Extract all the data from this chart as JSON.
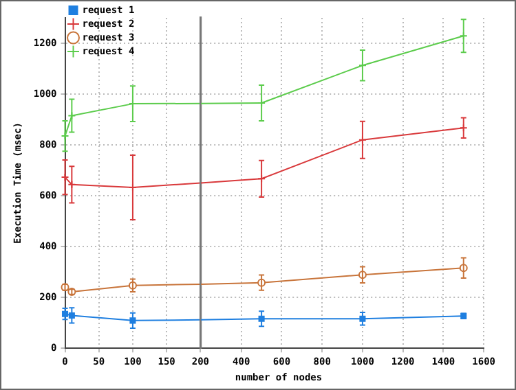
{
  "chart_data": [
    {
      "type": "line",
      "ylabel": "Execution Time (msec)",
      "x": [
        0,
        10,
        100
      ],
      "series": [
        {
          "name": "request 1",
          "color": "#1f7fe0",
          "marker": "square",
          "values": [
            135,
            129,
            109
          ],
          "errors": [
            22,
            30,
            30
          ]
        },
        {
          "name": "request 2",
          "color": "#d9393b",
          "marker": "cross",
          "values": [
            673,
            644,
            633
          ],
          "errors": [
            68,
            72,
            127
          ]
        },
        {
          "name": "request 3",
          "color": "#c8743a",
          "marker": "circle",
          "values": [
            240,
            222,
            247
          ],
          "errors": [
            12,
            10,
            25
          ]
        },
        {
          "name": "request 4",
          "color": "#5ccc4c",
          "marker": "cross",
          "values": [
            835,
            915,
            962
          ],
          "errors": [
            60,
            65,
            70
          ]
        },
        {
          "color": "#1f7fe0",
          "marker": "none",
          "x": [
            100,
            200
          ],
          "values": [
            109,
            112
          ]
        },
        {
          "color": "#d9393b",
          "marker": "none",
          "x": [
            100,
            200
          ],
          "values": [
            633,
            650
          ]
        },
        {
          "color": "#c8743a",
          "marker": "none",
          "x": [
            100,
            200
          ],
          "values": [
            247,
            252
          ]
        },
        {
          "color": "#5ccc4c",
          "marker": "none",
          "x": [
            100,
            200
          ],
          "values": [
            962,
            963
          ]
        }
      ],
      "xlim": [
        0,
        200
      ],
      "xticks": [
        0,
        50,
        100,
        150,
        200
      ],
      "ylim": [
        0,
        1300
      ],
      "yticks": [
        0,
        200,
        400,
        600,
        800,
        1000,
        1200
      ],
      "grid": true,
      "legend": "top left",
      "line_style": "solid"
    },
    {
      "type": "line",
      "xlabel": "number of nodes",
      "x": [
        500,
        1000,
        1500
      ],
      "series": [
        {
          "color": "#1f7fe0",
          "marker": "square",
          "values": [
            116,
            116,
            127
          ],
          "errors": [
            30,
            25,
            10
          ]
        },
        {
          "color": "#d9393b",
          "marker": "cross",
          "values": [
            667,
            820,
            867
          ],
          "errors": [
            72,
            73,
            40
          ]
        },
        {
          "color": "#c8743a",
          "marker": "circle",
          "values": [
            258,
            289,
            316
          ],
          "errors": [
            30,
            32,
            40
          ]
        },
        {
          "color": "#5ccc4c",
          "marker": "cross",
          "values": [
            965,
            1113,
            1229
          ],
          "errors": [
            70,
            60,
            65
          ]
        },
        {
          "color": "#1f7fe0",
          "marker": "none",
          "x": [
            200,
            500
          ],
          "values": [
            112,
            116
          ]
        },
        {
          "color": "#d9393b",
          "marker": "none",
          "x": [
            200,
            500
          ],
          "values": [
            650,
            667
          ]
        },
        {
          "color": "#c8743a",
          "marker": "none",
          "x": [
            200,
            500
          ],
          "values": [
            252,
            258
          ]
        },
        {
          "color": "#5ccc4c",
          "marker": "none",
          "x": [
            200,
            500
          ],
          "values": [
            963,
            965
          ]
        }
      ],
      "xlim": [
        200,
        1600
      ],
      "xticks": [
        400,
        600,
        800,
        1000,
        1200,
        1400,
        1600
      ],
      "ylim": [
        0,
        1300
      ],
      "yticks": [
        0,
        200,
        400,
        600,
        800,
        1000,
        1200
      ],
      "tick_labels": "x",
      "grid": true,
      "line_style": "solid"
    }
  ]
}
